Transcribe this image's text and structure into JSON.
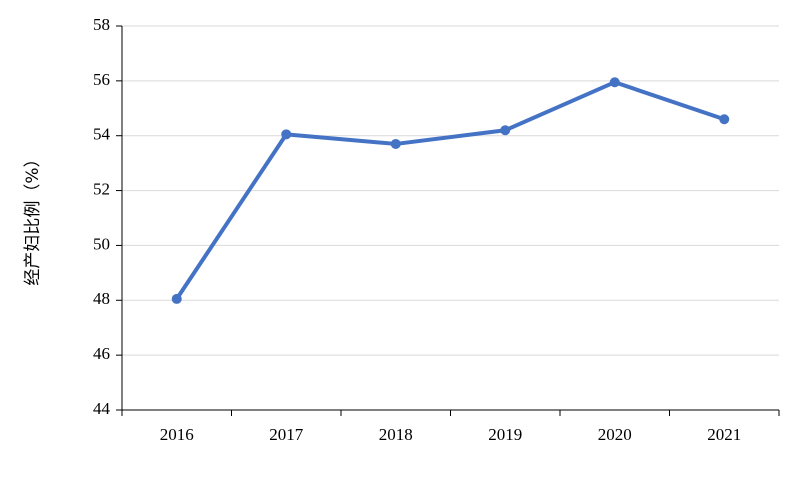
{
  "chart_data": {
    "type": "line",
    "y_label": "经产妇比例（%）",
    "categories": [
      "2016",
      "2017",
      "2018",
      "2019",
      "2020",
      "2021"
    ],
    "series": [
      {
        "name": "经产妇比例",
        "color": "#4472c4",
        "values": [
          48.05,
          54.05,
          53.7,
          54.2,
          55.95,
          54.6
        ]
      }
    ],
    "ylim": [
      44,
      58
    ],
    "yticks": [
      44,
      46,
      48,
      50,
      52,
      54,
      56,
      58
    ],
    "grid": true
  }
}
